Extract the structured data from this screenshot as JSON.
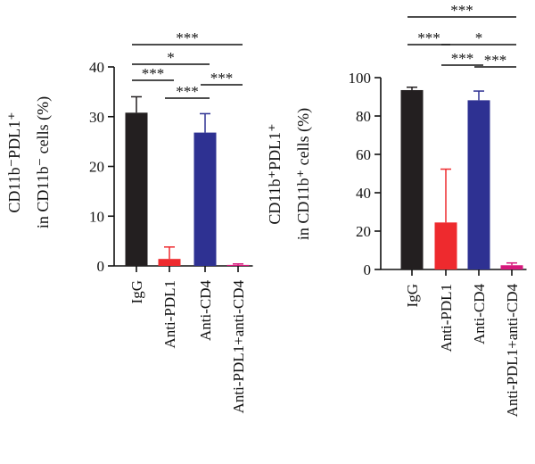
{
  "chart_data": [
    {
      "type": "bar",
      "ylabel_lines": [
        "CD11b⁻PDL1⁺",
        "in CD11b⁻ cells (%)"
      ],
      "categories": [
        "IgG",
        "Anti-PDL1",
        "Anti-CD4",
        "Anti-PDL1+anti-CD4"
      ],
      "values": [
        30.8,
        1.4,
        26.8,
        0.2
      ],
      "errors": [
        3.2,
        2.4,
        3.8,
        0.2
      ],
      "colors": [
        "#231f20",
        "#ee2a2e",
        "#2e3192",
        "#d6197c"
      ],
      "ylim": [
        0,
        40
      ],
      "yticks": [
        0,
        10,
        20,
        30,
        40
      ],
      "significance": [
        {
          "from": 0,
          "to": 3,
          "label": "***"
        },
        {
          "from": 0,
          "to": 2,
          "label": "*"
        },
        {
          "from": 0,
          "to": 1,
          "label": "***"
        },
        {
          "from": 1,
          "to": 2,
          "label": "***"
        },
        {
          "from": 2,
          "to": 3,
          "label": "***"
        }
      ]
    },
    {
      "type": "bar",
      "ylabel_lines": [
        "CD11b⁺PDL1⁺",
        "in CD11b⁺ cells (%)"
      ],
      "categories": [
        "IgG",
        "Anti-PDL1",
        "Anti-CD4",
        "Anti-PDL1+anti-CD4"
      ],
      "values": [
        93.5,
        24.5,
        88.2,
        2.2
      ],
      "errors": [
        1.5,
        27.8,
        4.8,
        1.2
      ],
      "colors": [
        "#231f20",
        "#ee2a2e",
        "#2e3192",
        "#d6197c"
      ],
      "ylim": [
        0,
        100
      ],
      "yticks": [
        0,
        20,
        40,
        60,
        80,
        100
      ],
      "significance": [
        {
          "from": 0,
          "to": 3,
          "label": "***"
        },
        {
          "from": 0,
          "to": 1,
          "label": "***"
        },
        {
          "from": 1,
          "to": 3,
          "label": "*"
        },
        {
          "from": 1,
          "to": 2,
          "label": "***"
        },
        {
          "from": 2,
          "to": 3,
          "label": "***"
        }
      ]
    }
  ]
}
